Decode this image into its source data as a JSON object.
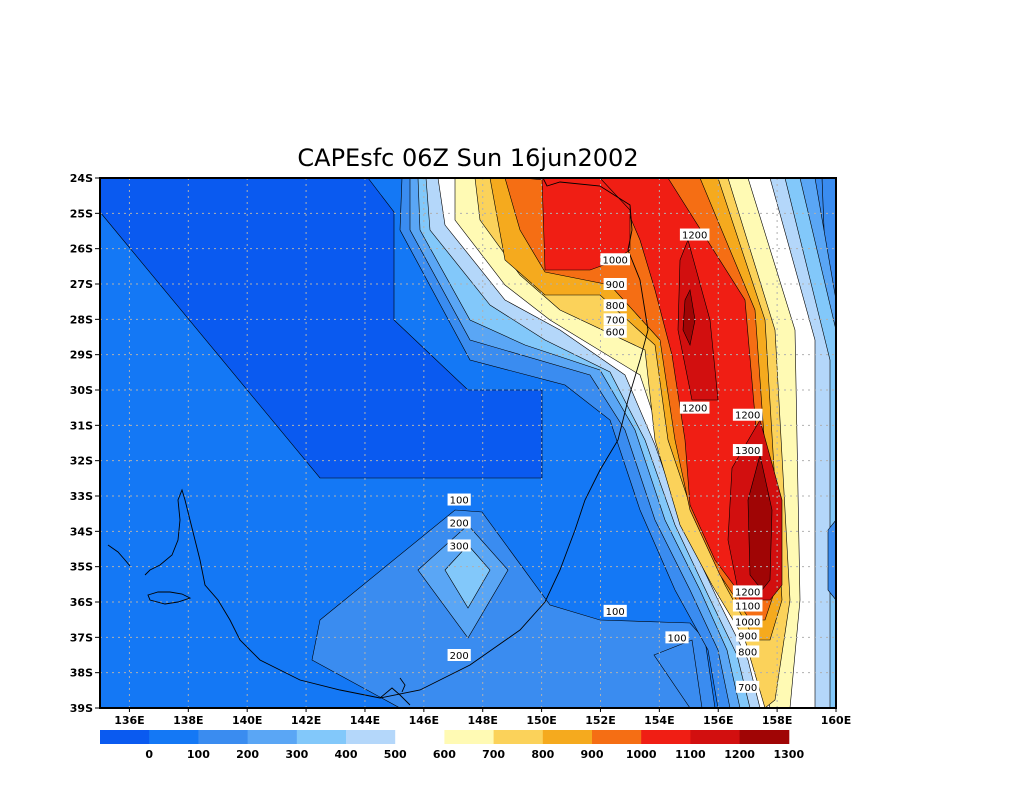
{
  "chart_data": {
    "type": "heatmap",
    "title": "CAPEsfc 06Z Sun 16jun2002",
    "x_ticks": [
      "136E",
      "138E",
      "140E",
      "142E",
      "144E",
      "146E",
      "148E",
      "150E",
      "152E",
      "154E",
      "156E",
      "158E",
      "160E"
    ],
    "y_ticks": [
      "24S",
      "25S",
      "26S",
      "27S",
      "28S",
      "29S",
      "30S",
      "31S",
      "32S",
      "33S",
      "34S",
      "35S",
      "36S",
      "37S",
      "38S",
      "39S"
    ],
    "xlim": [
      135,
      160
    ],
    "ylim": [
      -39,
      -24
    ],
    "grid": true,
    "colorbar": {
      "levels": [
        "0",
        "100",
        "200",
        "300",
        "400",
        "500",
        "600",
        "700",
        "800",
        "900",
        "1000",
        "1100",
        "1200",
        "1300"
      ],
      "colors": [
        "#0a5af0",
        "#1478f5",
        "#3a8cf0",
        "#5aa6f5",
        "#82c8fa",
        "#b4d7fa",
        "#ffffff",
        "#fffab4",
        "#fbd25a",
        "#f5aa1e",
        "#f56e14",
        "#f01e14",
        "#d20f0f",
        "#a00505"
      ]
    },
    "contour_labels": [
      {
        "text": "1200",
        "lon": 155.2,
        "lat": -25.6
      },
      {
        "text": "1000",
        "lon": 152.5,
        "lat": -26.3
      },
      {
        "text": "900",
        "lon": 152.5,
        "lat": -27.0
      },
      {
        "text": "800",
        "lon": 152.5,
        "lat": -27.6
      },
      {
        "text": "700",
        "lon": 152.5,
        "lat": -28.0
      },
      {
        "text": "600",
        "lon": 152.5,
        "lat": -28.35
      },
      {
        "text": "1200",
        "lon": 155.2,
        "lat": -30.5
      },
      {
        "text": "1200",
        "lon": 157.0,
        "lat": -30.7
      },
      {
        "text": "1300",
        "lon": 157.0,
        "lat": -31.7
      },
      {
        "text": "100",
        "lon": 147.2,
        "lat": -33.1
      },
      {
        "text": "200",
        "lon": 147.2,
        "lat": -33.75
      },
      {
        "text": "300",
        "lon": 147.2,
        "lat": -34.4
      },
      {
        "text": "100",
        "lon": 152.5,
        "lat": -36.25
      },
      {
        "text": "100",
        "lon": 154.6,
        "lat": -37.0
      },
      {
        "text": "1200",
        "lon": 157.0,
        "lat": -35.7
      },
      {
        "text": "1100",
        "lon": 157.0,
        "lat": -36.1
      },
      {
        "text": "1000",
        "lon": 157.0,
        "lat": -36.55
      },
      {
        "text": "900",
        "lon": 157.0,
        "lat": -36.95
      },
      {
        "text": "800",
        "lon": 157.0,
        "lat": -37.4
      },
      {
        "text": "200",
        "lon": 147.2,
        "lat": -37.5
      },
      {
        "text": "700",
        "lon": 157.0,
        "lat": -38.4
      }
    ]
  }
}
